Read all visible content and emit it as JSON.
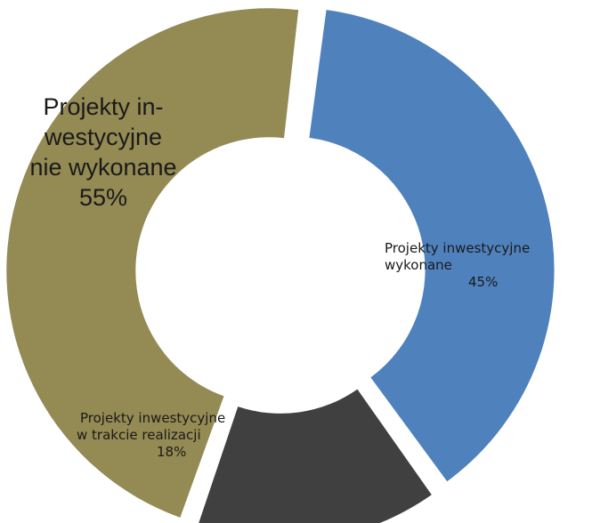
{
  "chart_data": {
    "type": "pie",
    "variant": "donut",
    "slices": [
      {
        "label_lines": [
          "Projekty inwestycyjne",
          "wykonane",
          "45%"
        ],
        "percent_label": "45%",
        "value": 45,
        "color": "#4f81bd"
      },
      {
        "label_lines": [
          "Projekty inwestycyjne",
          "w trakcie realizacji",
          "18%"
        ],
        "percent_label": "18%",
        "value": 18,
        "color": "#404040"
      },
      {
        "label_lines": [
          "Projekty in-",
          "westycyjne",
          "nie wykonane",
          "55%"
        ],
        "percent_label": "55%",
        "value": 55,
        "color": "#948a54"
      }
    ],
    "title": "",
    "legend": "none"
  }
}
